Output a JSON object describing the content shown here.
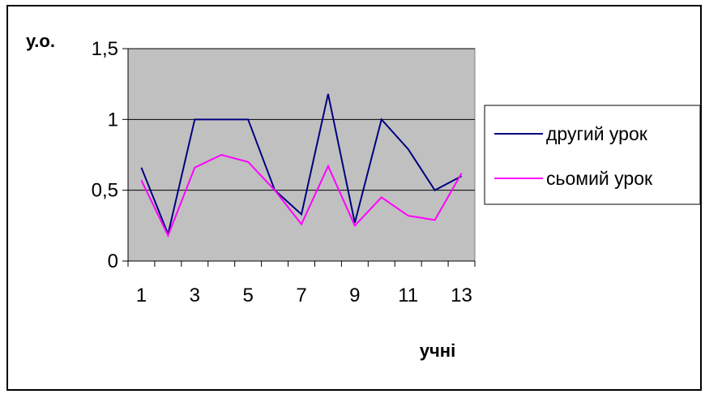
{
  "chart_data": {
    "type": "line",
    "xlabel": "учні",
    "ylabel": "у.о.",
    "x": [
      1,
      2,
      3,
      4,
      5,
      6,
      7,
      8,
      9,
      10,
      11,
      12,
      13
    ],
    "x_tick_labels": [
      "1",
      "3",
      "5",
      "7",
      "9",
      "11",
      "13"
    ],
    "y_tick_labels": [
      "0",
      "0,5",
      "1",
      "1,5"
    ],
    "ylim": [
      0,
      1.5
    ],
    "grid": true,
    "plot_background": "#c0c0c0",
    "legend_position": "right",
    "series": [
      {
        "name": "другий урок",
        "color": "#000080",
        "values": [
          0.66,
          0.19,
          1.0,
          1.0,
          1.0,
          0.5,
          0.33,
          1.18,
          0.27,
          1.0,
          0.79,
          0.5,
          0.6
        ]
      },
      {
        "name": "сьомий урок",
        "color": "#ff00ff",
        "values": [
          0.57,
          0.18,
          0.66,
          0.75,
          0.7,
          0.5,
          0.26,
          0.67,
          0.25,
          0.45,
          0.32,
          0.29,
          0.62
        ]
      }
    ]
  }
}
